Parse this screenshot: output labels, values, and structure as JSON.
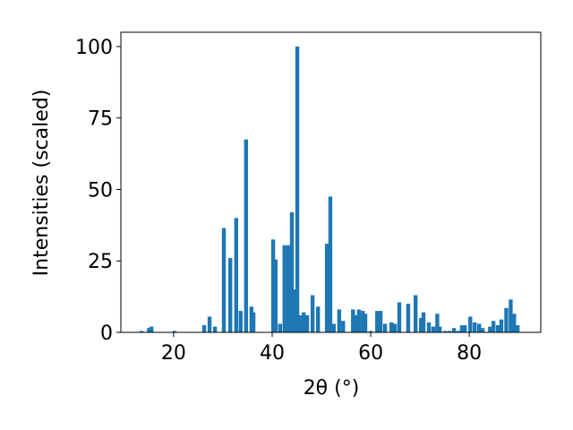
{
  "chart_data": {
    "type": "bar",
    "xlabel": "2θ (°)",
    "ylabel": "Intensities (scaled)",
    "color": "#1f77b4",
    "x": [
      13.5,
      15,
      15.5,
      20.2,
      26.2,
      27.3,
      28.4,
      30.2,
      31.5,
      32.7,
      33.6,
      34.7,
      35.8,
      36.2,
      40.2,
      40.7,
      41.6,
      42.5,
      43.3,
      44,
      44.5,
      45.1,
      45.8,
      46.4,
      47.1,
      48.2,
      49.3,
      51.1,
      51.8,
      52.5,
      53.6,
      54.4,
      56.4,
      57,
      57.6,
      58.4,
      58.9,
      60,
      61.3,
      62,
      62.9,
      64.2,
      64.9,
      65.8,
      67.6,
      69.1,
      70.2,
      70.7,
      71.8,
      72.7,
      73.5,
      74,
      75.1,
      76,
      76.9,
      77.8,
      78.5,
      79.1,
      80.2,
      81.1,
      82,
      82.7,
      84.2,
      84.9,
      85.8,
      86.5,
      87.5,
      88.4,
      89.1,
      89.8
    ],
    "values": [
      0.5,
      1.5,
      2,
      0.5,
      2.5,
      5.5,
      2,
      36.5,
      26,
      40,
      7.5,
      67.5,
      9,
      7,
      32.5,
      25.5,
      3,
      30.5,
      30.5,
      42,
      15,
      100,
      6,
      7,
      6,
      13,
      9,
      31,
      47.5,
      3,
      8,
      4,
      8,
      6,
      8,
      7.5,
      6.5,
      0.5,
      7.5,
      7.5,
      3,
      3.5,
      3,
      10.5,
      10,
      13,
      5,
      7,
      3.5,
      2,
      6.5,
      2,
      0.5,
      0.5,
      1.5,
      0.5,
      2.5,
      2.5,
      5.5,
      3.5,
      3,
      1.5,
      2,
      4,
      2.5,
      4.5,
      8.5,
      11.5,
      6.5,
      2.5
    ],
    "xlim": [
      9.3,
      94.5
    ],
    "ylim": [
      0,
      105
    ],
    "xticks": [
      20,
      40,
      60,
      80
    ],
    "yticks": [
      0,
      25,
      50,
      75,
      100
    ]
  }
}
